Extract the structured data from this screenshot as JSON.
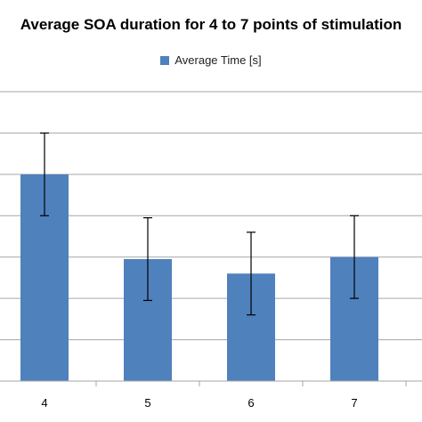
{
  "chart_data": {
    "type": "bar",
    "title": "Average SOA duration for 4 to 7 points of stimulation",
    "series": [
      {
        "name": "Average Time [s]",
        "color": "#4f81bd",
        "values": [
          5.0,
          2.95,
          2.6,
          3.0
        ],
        "error": [
          1.0,
          1.0,
          1.0,
          1.0
        ]
      }
    ],
    "categories": [
      "4",
      "5",
      "6",
      "7"
    ],
    "ylim": [
      0,
      7
    ],
    "grid": true,
    "legend": "top-center"
  }
}
